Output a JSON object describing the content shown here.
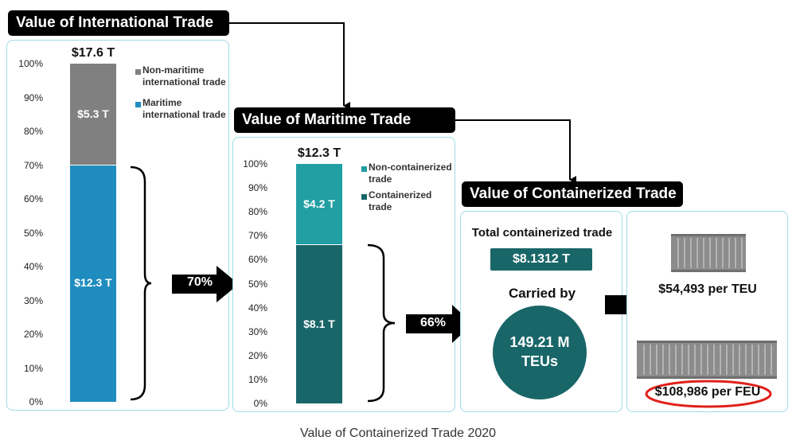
{
  "caption": "Value of Containerized Trade 2020",
  "colors": {
    "nonmaritime": "#808080",
    "maritime": "#1f8cc0",
    "noncontainerized": "#229fa3",
    "containerized": "#196669",
    "circle": "#196669",
    "badge": "#196669",
    "panel_border": "#9fdbe6",
    "highlight": "#e0201b"
  },
  "banners": {
    "international": "Value of International Trade",
    "maritime": "Value of Maritime Trade",
    "containerized": "Value of Containerized Trade"
  },
  "arrows": {
    "first_pct": "70%",
    "second_pct": "66%"
  },
  "containerized_panel": {
    "title": "Total containerized trade",
    "value": "$8.1312 T",
    "carried_by": "Carried by",
    "teus_line1": "149.21 M",
    "teus_line2": "TEUs"
  },
  "unit_panel": {
    "per_teu": "$54,493 per TEU",
    "per_feu": "$108,986 per FEU"
  },
  "chart_data": [
    {
      "type": "bar",
      "stacked": true,
      "categories": [
        ""
      ],
      "total_label": "$17.6 T",
      "series": [
        {
          "name": "Maritime international trade",
          "values": [
            70
          ],
          "label": "$12.3 T"
        },
        {
          "name": "Non-maritime international trade",
          "values": [
            30
          ],
          "label": "$5.3 T"
        }
      ],
      "legend": [
        "Non-maritime international trade",
        "Maritime international trade"
      ],
      "ylim": [
        0,
        100
      ],
      "yticks": [
        "0%",
        "10%",
        "20%",
        "30%",
        "40%",
        "50%",
        "60%",
        "70%",
        "80%",
        "90%",
        "100%"
      ]
    },
    {
      "type": "bar",
      "stacked": true,
      "categories": [
        ""
      ],
      "total_label": "$12.3 T",
      "series": [
        {
          "name": "Containerized trade",
          "values": [
            66
          ],
          "label": "$8.1 T"
        },
        {
          "name": "Non-containerized trade",
          "values": [
            34
          ],
          "label": "$4.2 T"
        }
      ],
      "legend": [
        "Non-containerized trade",
        "Containerized trade"
      ],
      "ylim": [
        0,
        100
      ],
      "yticks": [
        "0%",
        "10%",
        "20%",
        "30%",
        "40%",
        "50%",
        "60%",
        "70%",
        "80%",
        "90%",
        "100%"
      ]
    }
  ]
}
